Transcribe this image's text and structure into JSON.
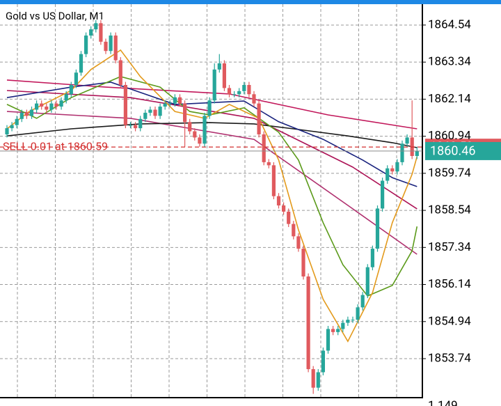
{
  "chart_data": {
    "type": "candlestick",
    "title": "Gold vs US Dollar, M1",
    "ylim": [
      1852.5,
      1865.17
    ],
    "yticks": [
      1864.54,
      1863.34,
      1862.14,
      1860.94,
      1859.74,
      1858.54,
      1857.34,
      1856.14,
      1854.94,
      1853.74
    ],
    "grid": true,
    "up_color": "#26a69a",
    "down_color": "#e05a5e",
    "open": [
      1861.0,
      1861.2,
      1861.3,
      1861.5,
      1861.7,
      1861.6,
      1861.8,
      1862.0,
      1861.9,
      1861.8,
      1862.0,
      1861.9,
      1862.1,
      1862.3,
      1862.6,
      1863.0,
      1863.6,
      1864.2,
      1864.4,
      1864.6,
      1864.0,
      1863.7,
      1864.2,
      1863.4,
      1862.6,
      1861.3,
      1861.3,
      1861.2,
      1861.5,
      1861.7,
      1861.8,
      1861.6,
      1861.9,
      1862.0,
      1862.0,
      1862.2,
      1862.0,
      1861.4,
      1861.1,
      1860.9,
      1860.7,
      1861.6,
      1862.1,
      1863.1,
      1863.3,
      1862.5,
      1862.3,
      1862.3,
      1862.4,
      1862.6,
      1862.3,
      1862.0,
      1861.0,
      1860.1,
      1860.0,
      1859.0,
      1858.7,
      1858.5,
      1858.1,
      1857.7,
      1857.3,
      1856.4,
      1853.4,
      1852.8,
      1853.3,
      1854.0,
      1854.7,
      1854.6,
      1854.7,
      1854.9,
      1855.0,
      1855.0,
      1855.4,
      1855.8,
      1856.7,
      1857.3,
      1858.6,
      1859.5,
      1859.9,
      1859.8,
      1860.1,
      1860.7,
      1860.9,
      1860.3
    ],
    "high": [
      1861.3,
      1861.4,
      1861.6,
      1861.8,
      1861.8,
      1861.9,
      1862.1,
      1862.1,
      1862.0,
      1862.1,
      1862.1,
      1862.2,
      1862.4,
      1862.7,
      1863.1,
      1863.7,
      1864.3,
      1864.5,
      1864.7,
      1864.7,
      1864.1,
      1864.3,
      1864.3,
      1863.5,
      1862.7,
      1861.4,
      1861.4,
      1861.6,
      1861.8,
      1861.9,
      1861.9,
      1862.0,
      1862.1,
      1862.1,
      1862.3,
      1862.3,
      1862.1,
      1861.5,
      1861.2,
      1861.0,
      1861.7,
      1862.2,
      1863.3,
      1863.6,
      1863.4,
      1862.6,
      1862.4,
      1862.5,
      1862.7,
      1862.7,
      1862.4,
      1862.1,
      1861.1,
      1860.2,
      1860.1,
      1859.1,
      1858.8,
      1858.6,
      1858.2,
      1857.8,
      1857.4,
      1856.5,
      1853.5,
      1853.4,
      1854.1,
      1854.8,
      1854.8,
      1854.8,
      1855.0,
      1855.1,
      1855.1,
      1855.5,
      1855.9,
      1856.8,
      1857.4,
      1858.7,
      1859.6,
      1860.0,
      1860.0,
      1860.2,
      1860.8,
      1861.0,
      1862.1,
      1860.6
    ],
    "low": [
      1860.9,
      1861.1,
      1861.2,
      1861.4,
      1861.5,
      1861.5,
      1861.7,
      1861.8,
      1861.7,
      1861.7,
      1861.8,
      1861.8,
      1862.0,
      1862.2,
      1862.5,
      1862.9,
      1863.5,
      1864.1,
      1864.3,
      1863.9,
      1863.6,
      1863.6,
      1863.3,
      1862.5,
      1861.2,
      1861.2,
      1861.1,
      1861.1,
      1861.4,
      1861.6,
      1861.5,
      1861.5,
      1861.8,
      1861.9,
      1861.9,
      1861.9,
      1860.6,
      1861.0,
      1860.8,
      1860.6,
      1860.6,
      1861.5,
      1862.0,
      1863.0,
      1862.4,
      1862.2,
      1862.2,
      1862.2,
      1862.3,
      1862.2,
      1861.9,
      1860.9,
      1860.0,
      1859.9,
      1858.9,
      1858.6,
      1858.4,
      1858.0,
      1857.6,
      1857.2,
      1856.3,
      1853.3,
      1852.6,
      1852.7,
      1853.2,
      1853.9,
      1854.5,
      1854.5,
      1854.6,
      1854.8,
      1854.9,
      1854.9,
      1855.3,
      1855.7,
      1856.6,
      1857.2,
      1858.5,
      1859.4,
      1859.7,
      1859.7,
      1860.0,
      1860.6,
      1860.2,
      1860.2
    ],
    "close": [
      1861.2,
      1861.3,
      1861.5,
      1861.7,
      1861.6,
      1861.8,
      1862.0,
      1861.9,
      1861.8,
      1862.0,
      1861.9,
      1862.1,
      1862.3,
      1862.6,
      1863.0,
      1863.6,
      1864.2,
      1864.4,
      1864.6,
      1864.0,
      1863.7,
      1864.2,
      1863.4,
      1862.6,
      1861.3,
      1861.3,
      1861.2,
      1861.5,
      1861.7,
      1861.8,
      1861.6,
      1861.9,
      1862.0,
      1862.0,
      1862.2,
      1862.0,
      1861.4,
      1861.1,
      1860.9,
      1860.7,
      1861.6,
      1862.1,
      1863.1,
      1863.3,
      1862.5,
      1862.3,
      1862.3,
      1862.4,
      1862.6,
      1862.3,
      1862.0,
      1861.0,
      1860.1,
      1860.0,
      1859.0,
      1858.7,
      1858.5,
      1858.1,
      1857.7,
      1857.3,
      1856.4,
      1853.4,
      1852.8,
      1853.3,
      1854.0,
      1854.7,
      1854.6,
      1854.7,
      1854.9,
      1855.0,
      1855.0,
      1855.4,
      1855.8,
      1856.7,
      1857.3,
      1858.6,
      1859.5,
      1859.9,
      1859.8,
      1860.1,
      1860.7,
      1860.9,
      1860.3,
      1860.46
    ],
    "indicators": [
      {
        "color": "#c2185b",
        "x": [
          0,
          20,
          45,
          65,
          83
        ],
        "values": [
          1862.76,
          1862.53,
          1862.31,
          1861.63,
          1861.18
        ]
      },
      {
        "color": "#ad1457",
        "x": [
          0,
          25,
          50,
          70,
          83
        ],
        "values": [
          1862.42,
          1862.19,
          1861.52,
          1859.94,
          1858.59
        ]
      },
      {
        "color": "#b0306f",
        "x": [
          0,
          25,
          50,
          70,
          83
        ],
        "values": [
          1861.74,
          1861.52,
          1860.84,
          1858.59,
          1857.12
        ]
      },
      {
        "color": "#1a1a1a",
        "x": [
          0,
          13,
          27,
          41,
          50,
          58,
          69,
          78,
          83
        ],
        "values": [
          1860.95,
          1861.18,
          1861.34,
          1861.38,
          1861.34,
          1861.18,
          1860.95,
          1860.73,
          1860.57
        ]
      },
      {
        "color": "#1a237e",
        "x": [
          0,
          13,
          21,
          34,
          48,
          55,
          64,
          72,
          78,
          83
        ],
        "values": [
          1862.19,
          1862.53,
          1862.69,
          1861.97,
          1862.08,
          1861.41,
          1860.84,
          1860.17,
          1859.6,
          1859.31
        ]
      },
      {
        "color": "#5b9a1a",
        "x": [
          0,
          6,
          13,
          23,
          31,
          37,
          41,
          48,
          55,
          59,
          64,
          68,
          73,
          78,
          82,
          83
        ],
        "values": [
          1861.97,
          1861.52,
          1862.19,
          1862.87,
          1862.53,
          1861.74,
          1861.63,
          1861.86,
          1861.07,
          1860.17,
          1858.14,
          1856.78,
          1855.77,
          1856.11,
          1857.23,
          1858.02
        ]
      },
      {
        "color": "#e39a1c",
        "x": [
          0,
          4.5,
          13,
          17,
          23,
          27,
          34,
          40,
          45,
          51,
          55,
          59,
          64,
          69,
          74,
          78,
          82,
          83
        ],
        "values": [
          1861.18,
          1861.74,
          1862.42,
          1863.1,
          1863.73,
          1862.87,
          1861.74,
          1861.52,
          1861.97,
          1861.52,
          1860.17,
          1857.91,
          1855.66,
          1854.3,
          1855.88,
          1858.14,
          1859.71,
          1860.28
        ]
      }
    ],
    "order_label": "SELL 0.01 at 1860.59",
    "order_price": 1860.59,
    "current_price": 1860.46,
    "subwindow_ytick": 1.149
  }
}
